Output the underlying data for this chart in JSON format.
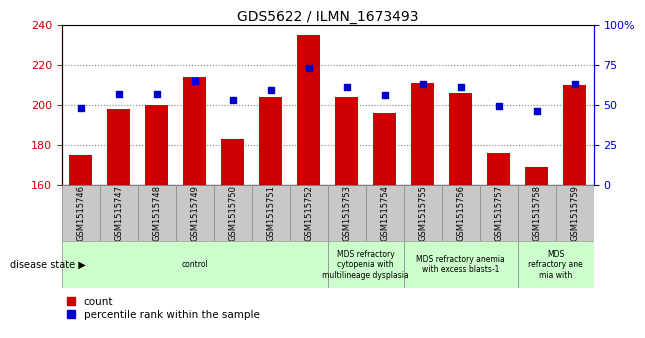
{
  "title": "GDS5622 / ILMN_1673493",
  "samples": [
    "GSM1515746",
    "GSM1515747",
    "GSM1515748",
    "GSM1515749",
    "GSM1515750",
    "GSM1515751",
    "GSM1515752",
    "GSM1515753",
    "GSM1515754",
    "GSM1515755",
    "GSM1515756",
    "GSM1515757",
    "GSM1515758",
    "GSM1515759"
  ],
  "counts": [
    175,
    198,
    200,
    214,
    183,
    204,
    235,
    204,
    196,
    211,
    206,
    176,
    169,
    210
  ],
  "percentiles": [
    48,
    57,
    57,
    65,
    53,
    59,
    73,
    61,
    56,
    63,
    61,
    49,
    46,
    63
  ],
  "ylim_left": [
    160,
    240
  ],
  "ylim_right": [
    0,
    100
  ],
  "yticks_left": [
    160,
    180,
    200,
    220,
    240
  ],
  "yticks_right": [
    0,
    25,
    50,
    75,
    100
  ],
  "bar_color": "#cc0000",
  "dot_color": "#0000cc",
  "sample_bg_color": "#c8c8c8",
  "plot_bg_color": "#ffffff",
  "groups": [
    {
      "label": "control",
      "start": 0,
      "end": 7,
      "color": "#ccffcc"
    },
    {
      "label": "MDS refractory\ncytopenia with\nmultilineage dysplasia",
      "start": 7,
      "end": 9,
      "color": "#ccffcc"
    },
    {
      "label": "MDS refractory anemia\nwith excess blasts-1",
      "start": 9,
      "end": 12,
      "color": "#ccffcc"
    },
    {
      "label": "MDS\nrefractory ane\nmia with",
      "start": 12,
      "end": 14,
      "color": "#ccffcc"
    }
  ],
  "disease_state_label": "disease state",
  "legend_count": "count",
  "legend_percentile": "percentile rank within the sample"
}
